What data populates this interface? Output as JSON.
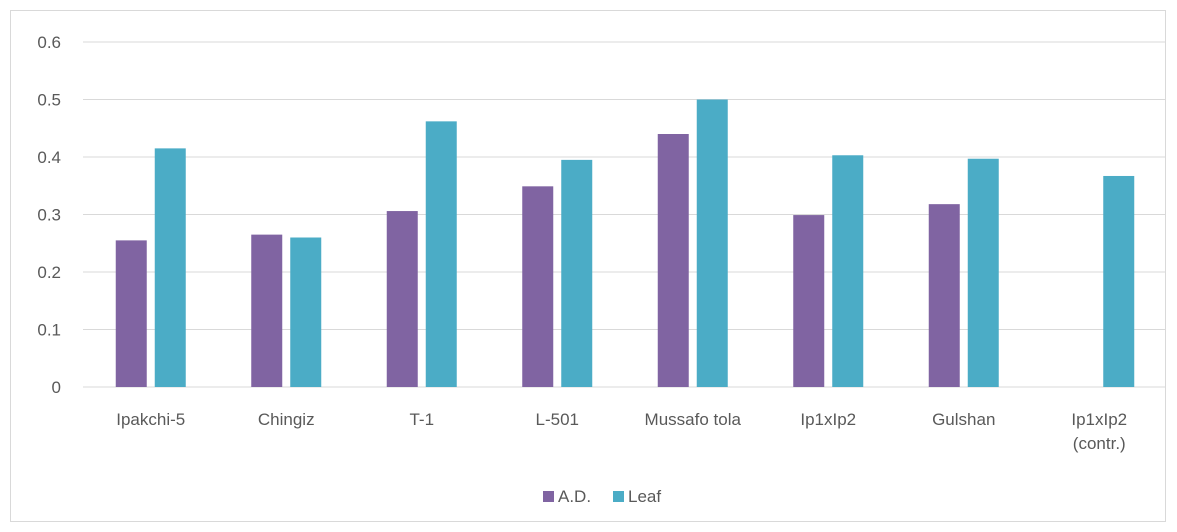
{
  "chart_data": {
    "type": "bar",
    "title": "",
    "xlabel": "",
    "ylabel": "",
    "categories": [
      [
        "Ipakchi-5"
      ],
      [
        "Chingiz"
      ],
      [
        "T-1"
      ],
      [
        "L-501"
      ],
      [
        "Mussafo tola"
      ],
      [
        "Ip1xIp2"
      ],
      [
        "Gulshan"
      ],
      [
        "Ip1xIp2",
        "(contr.)"
      ]
    ],
    "series": [
      {
        "name": "A.D.",
        "color": "#8064a2",
        "values": [
          0.255,
          0.265,
          0.306,
          0.349,
          0.44,
          0.299,
          0.318,
          null
        ]
      },
      {
        "name": "Leaf",
        "color": "#4bacc6",
        "values": [
          0.415,
          0.26,
          0.462,
          0.395,
          0.5,
          0.403,
          0.397,
          0.367
        ]
      }
    ],
    "ylim": [
      0,
      0.6
    ],
    "yticks": [
      "0",
      "0.1",
      "0.2",
      "0.3",
      "0.4",
      "0.5",
      "0.6"
    ],
    "grid": true,
    "legend_position": "bottom"
  }
}
